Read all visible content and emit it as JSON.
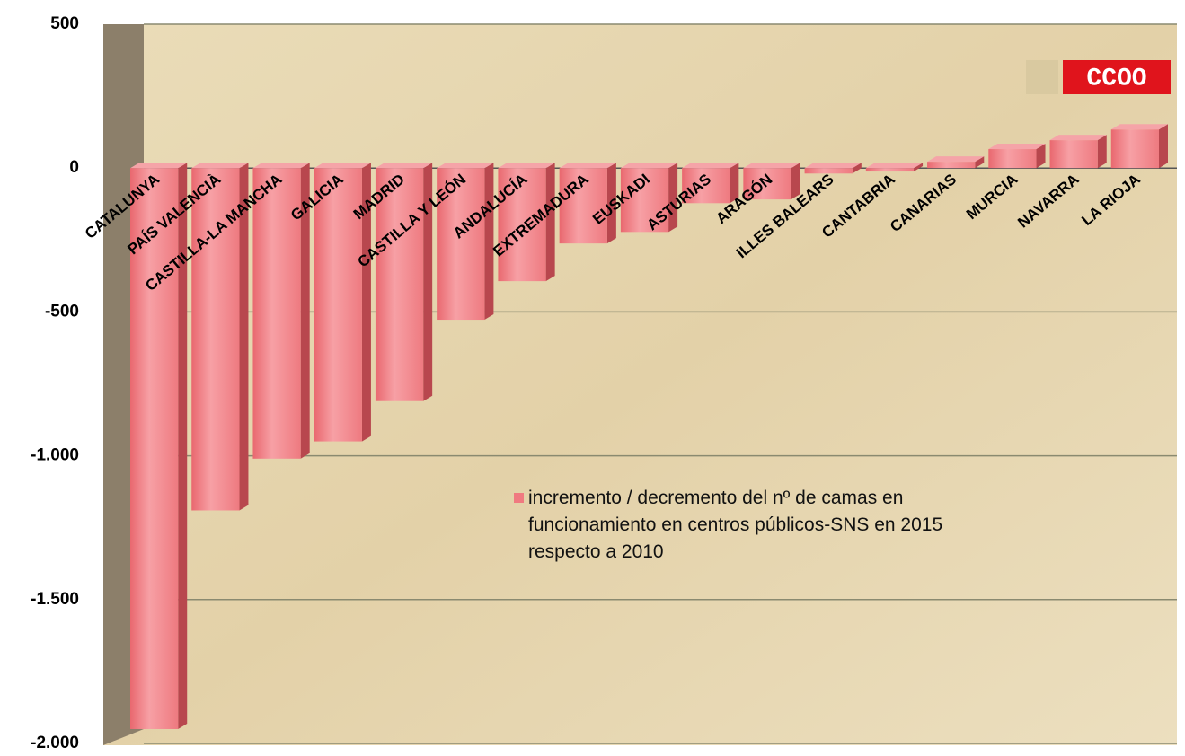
{
  "chart_data": {
    "type": "bar3d",
    "categories": [
      "CATALUNYA",
      "PAÍS VALENCIÀ",
      "CASTILLA-LA MANCHA",
      "GALICIA",
      "MADRID",
      "CASTILLA Y LEÓN",
      "ANDALUCÍA",
      "EXTREMADURA",
      "EUSKADI",
      "ASTURIAS",
      "ARAGÓN",
      "ILLES BALEARS",
      "CANTABRIA",
      "CANARIAS",
      "MURCIA",
      "NAVARRA",
      "LA RIOJA"
    ],
    "series": [
      {
        "name": "incremento / decremento del nº de camas en funcionamiento en centros públicos-SNS en 2015 respecto a 2010",
        "color": "#f07a80",
        "values": [
          -1950,
          -1190,
          -1010,
          -950,
          -810,
          -527,
          -393,
          -262,
          -222,
          -122,
          -109,
          -19,
          -12,
          22,
          66,
          97,
          134
        ]
      }
    ],
    "ylim": [
      -2000,
      500
    ],
    "yticks": [
      {
        "value": -2000,
        "label": "-2.000"
      },
      {
        "value": -1500,
        "label": "-1.500"
      },
      {
        "value": -1000,
        "label": "-1.000"
      },
      -500,
      0,
      500
    ],
    "grid": true,
    "logo_text": "CCOO"
  }
}
